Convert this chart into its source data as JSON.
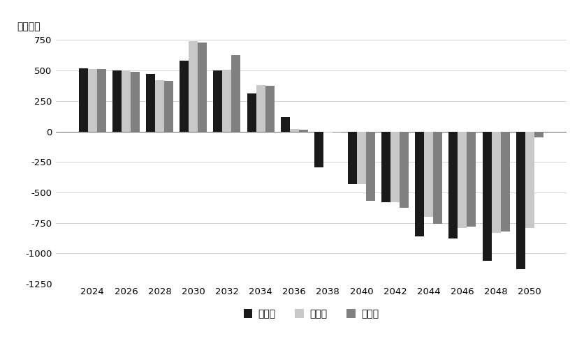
{
  "years": [
    2024,
    2026,
    2028,
    2030,
    2032,
    2034,
    2036,
    2038,
    2040,
    2042,
    2044,
    2046,
    2048,
    2050
  ],
  "low": [
    520,
    500,
    470,
    580,
    500,
    310,
    120,
    -295,
    -430,
    -580,
    -860,
    -880,
    -1060,
    -1130
  ],
  "mid": [
    510,
    500,
    420,
    740,
    505,
    380,
    20,
    -10,
    -430,
    -580,
    -700,
    -790,
    -830,
    -790
  ],
  "high": [
    510,
    490,
    415,
    730,
    625,
    375,
    15,
    -10,
    -570,
    -625,
    -760,
    -780,
    -820,
    -50
  ],
  "color_low": "#1a1a1a",
  "color_mid": "#c8c8c8",
  "color_high": "#808080",
  "ylabel": "（万人）",
  "ylim_min": -1250,
  "ylim_max": 800,
  "yticks": [
    -1250,
    -1000,
    -750,
    -500,
    -250,
    0,
    250,
    500,
    750
  ],
  "label_low": "低方案",
  "label_mid": "中方案",
  "label_high": "高方案",
  "bar_width": 0.27,
  "bg_color": "#ffffff",
  "grid_color": "#cccccc",
  "tick_fontsize": 9.5,
  "legend_fontsize": 10
}
